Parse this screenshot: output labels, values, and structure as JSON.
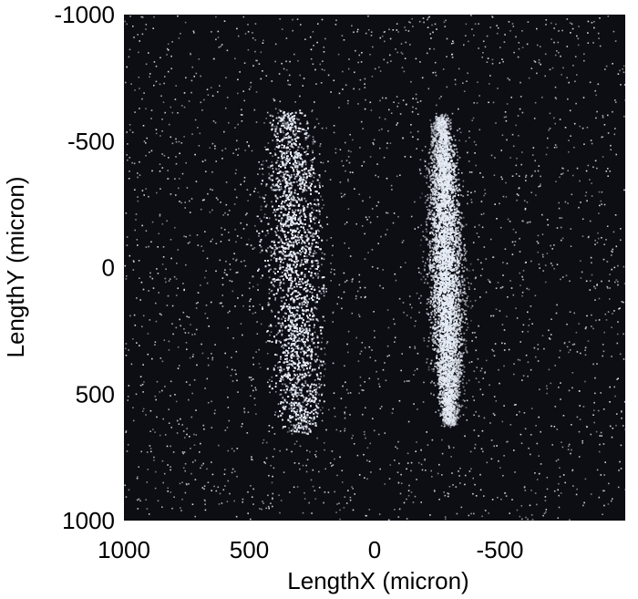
{
  "chart_data": {
    "type": "heatmap",
    "title": "",
    "xlabel": "LengthX (micron)",
    "ylabel": "LengthY (micron)",
    "xlim": [
      1000,
      -1000
    ],
    "ylim": [
      -1000,
      1000
    ],
    "x_reversed": true,
    "y_increases_downward": true,
    "x_ticks": [
      {
        "value": 1000,
        "label": "1000"
      },
      {
        "value": 500,
        "label": "500"
      },
      {
        "value": 0,
        "label": "0"
      },
      {
        "value": -500,
        "label": "-500"
      }
    ],
    "y_ticks": [
      {
        "value": -1000,
        "label": "-1000"
      },
      {
        "value": -500,
        "label": "-500"
      },
      {
        "value": 0,
        "label": "0"
      },
      {
        "value": 500,
        "label": "500"
      },
      {
        "value": 1000,
        "label": "1000"
      }
    ],
    "grid": false,
    "colormap": "gray",
    "background_color": "#0d0d14",
    "signal_color": "#e6ecf5",
    "features": [
      {
        "name": "left lobe",
        "x_range": [
          240,
          560
        ],
        "y_range": [
          -620,
          650
        ],
        "peak_x": 320
      },
      {
        "name": "right lobe",
        "x_range": [
          -350,
          -170
        ],
        "y_range": [
          -600,
          620
        ],
        "peak_x": -280
      }
    ]
  }
}
